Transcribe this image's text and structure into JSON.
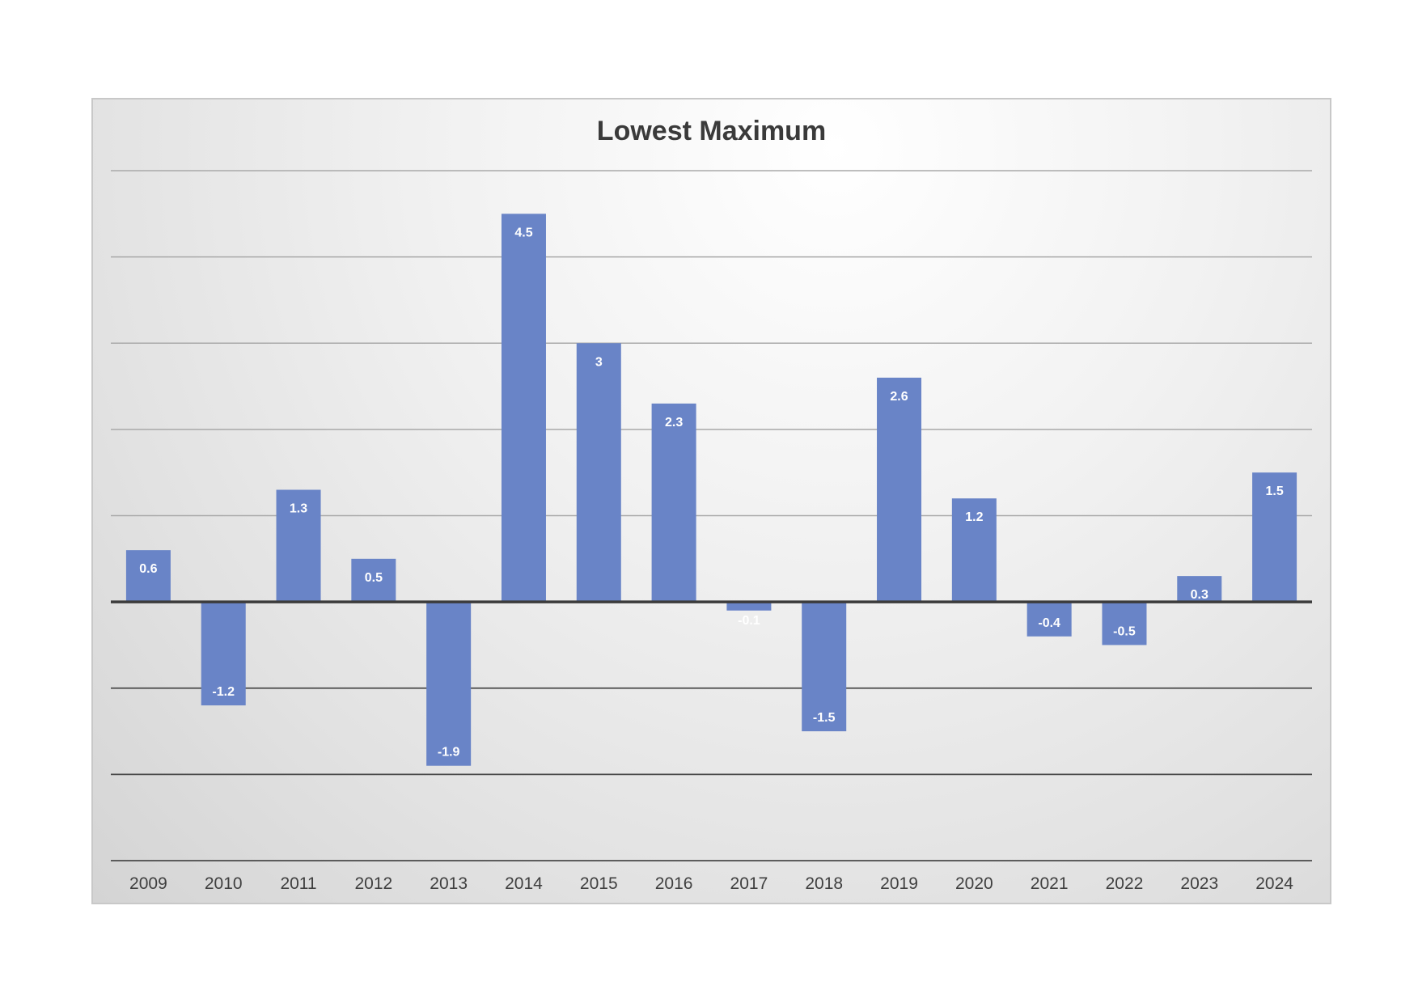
{
  "chart_data": {
    "type": "bar",
    "title": "Lowest Maximum",
    "xlabel": "",
    "ylabel": "",
    "categories": [
      "2009",
      "2010",
      "2011",
      "2012",
      "2013",
      "2014",
      "2015",
      "2016",
      "2017",
      "2018",
      "2019",
      "2020",
      "2021",
      "2022",
      "2023",
      "2024"
    ],
    "values": [
      0.6,
      -1.2,
      1.3,
      0.5,
      -1.9,
      4.5,
      3,
      2.3,
      -0.1,
      -1.5,
      2.6,
      1.2,
      -0.4,
      -0.5,
      0.3,
      1.5
    ],
    "ylim": [
      -3,
      5
    ],
    "gridlines": [
      5,
      4,
      3,
      2,
      1,
      0,
      -1,
      -2,
      -3
    ],
    "grid": true,
    "show_y_tick_labels": false,
    "data_labels": true,
    "legend": "none",
    "colors": {
      "bar": "#6984c7",
      "bar_label": "#ffffff"
    }
  }
}
